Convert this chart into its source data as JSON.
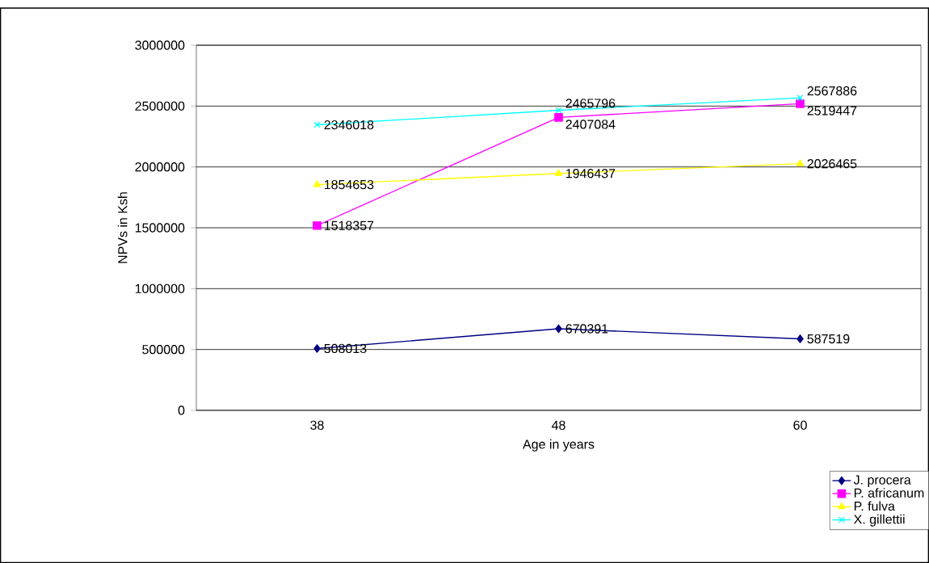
{
  "chart_data": {
    "type": "line",
    "xlabel": "Age in years",
    "ylabel": "NPVs in Ksh",
    "categories": [
      "38",
      "48",
      "60"
    ],
    "ylim": [
      0,
      3000000
    ],
    "yticks": [
      0,
      500000,
      1000000,
      1500000,
      2000000,
      2500000,
      3000000
    ],
    "grid": "y",
    "legend": "bottom right",
    "data_labels": true,
    "series": [
      {
        "name": "J. procera",
        "color": "#000080",
        "marker": "diamond",
        "values": [
          508013,
          670391,
          587519
        ]
      },
      {
        "name": "P. africanum",
        "color": "#ff00ff",
        "marker": "square",
        "values": [
          1518357,
          2407084,
          2519447
        ]
      },
      {
        "name": "P. fulva",
        "color": "#ffff00",
        "marker": "triangle",
        "values": [
          1854653,
          1946437,
          2026465
        ]
      },
      {
        "name": "X. gillettii",
        "color": "#00ffff",
        "marker": "cross",
        "values": [
          2346018,
          2465796,
          2567886
        ]
      }
    ]
  }
}
